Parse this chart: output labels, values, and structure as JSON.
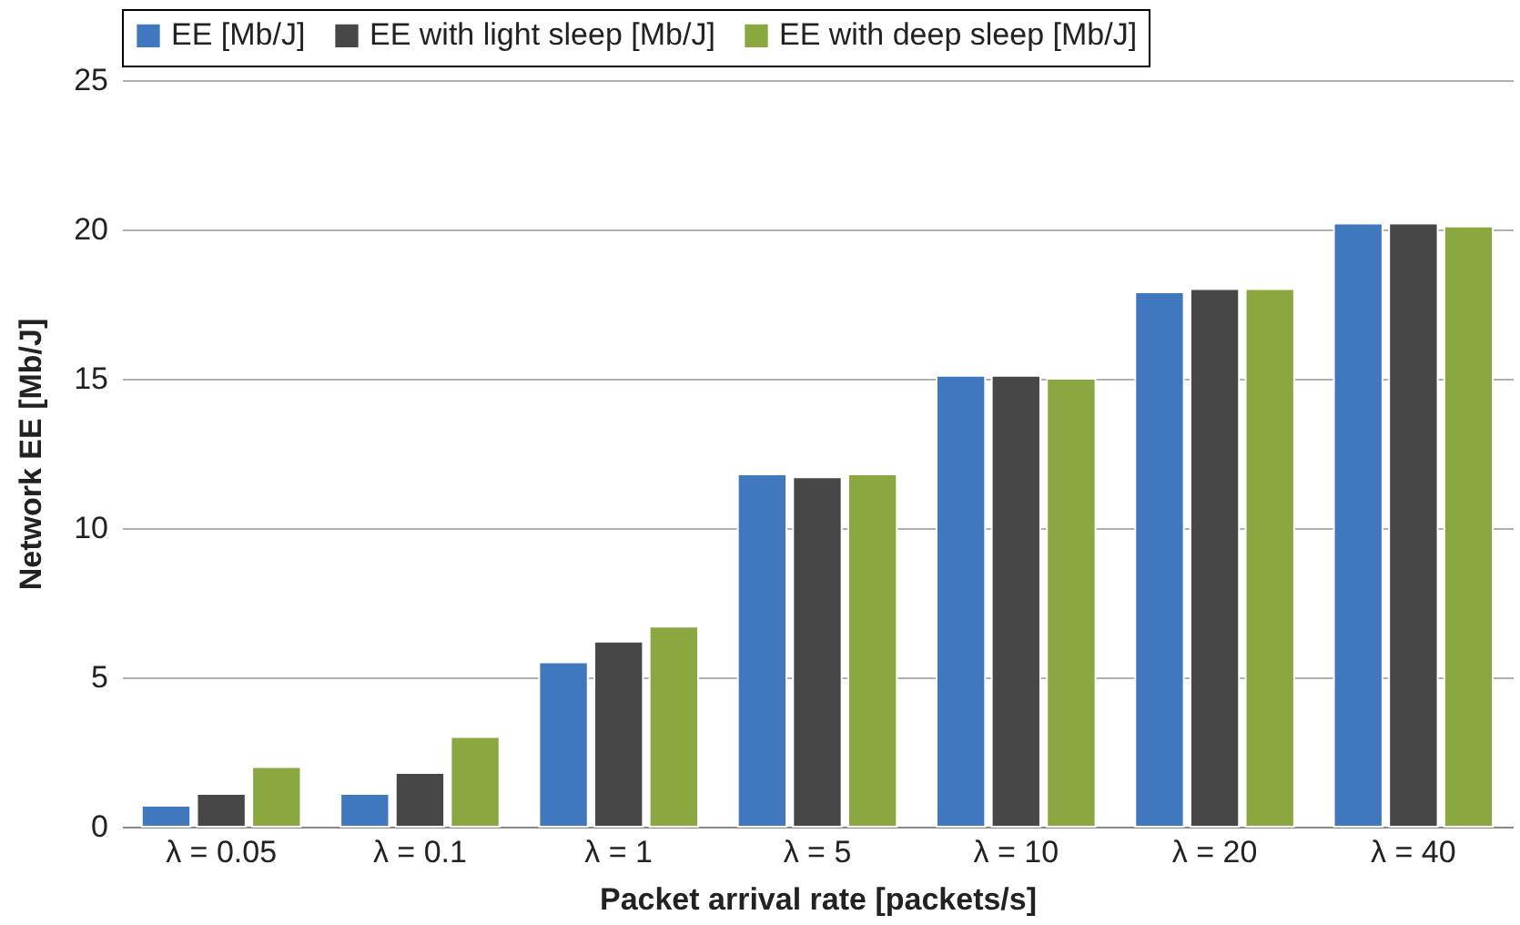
{
  "chart_data": {
    "type": "bar",
    "xlabel": "Packet arrival rate [packets/s]",
    "ylabel": "Network EE [Mb/J]",
    "categories": [
      "λ = 0.05",
      "λ = 0.1",
      "λ = 1",
      "λ = 5",
      "λ = 10",
      "λ = 20",
      "λ = 40"
    ],
    "series": [
      {
        "name": "EE [Mb/J]",
        "color": "#3f78bf",
        "values": [
          0.7,
          1.1,
          5.5,
          11.8,
          15.1,
          17.9,
          20.2
        ]
      },
      {
        "name": "EE with light sleep [Mb/J]",
        "color": "#474747",
        "values": [
          1.1,
          1.8,
          6.2,
          11.7,
          15.1,
          18.0,
          20.2
        ]
      },
      {
        "name": "EE with deep sleep [Mb/J]",
        "color": "#8aa83f",
        "values": [
          2.0,
          3.0,
          6.7,
          11.8,
          15.0,
          18.0,
          20.1
        ]
      }
    ],
    "ylim": [
      0,
      25
    ],
    "yticks": [
      0,
      5,
      10,
      15,
      20,
      25
    ],
    "grid": "y",
    "legend": "top"
  }
}
